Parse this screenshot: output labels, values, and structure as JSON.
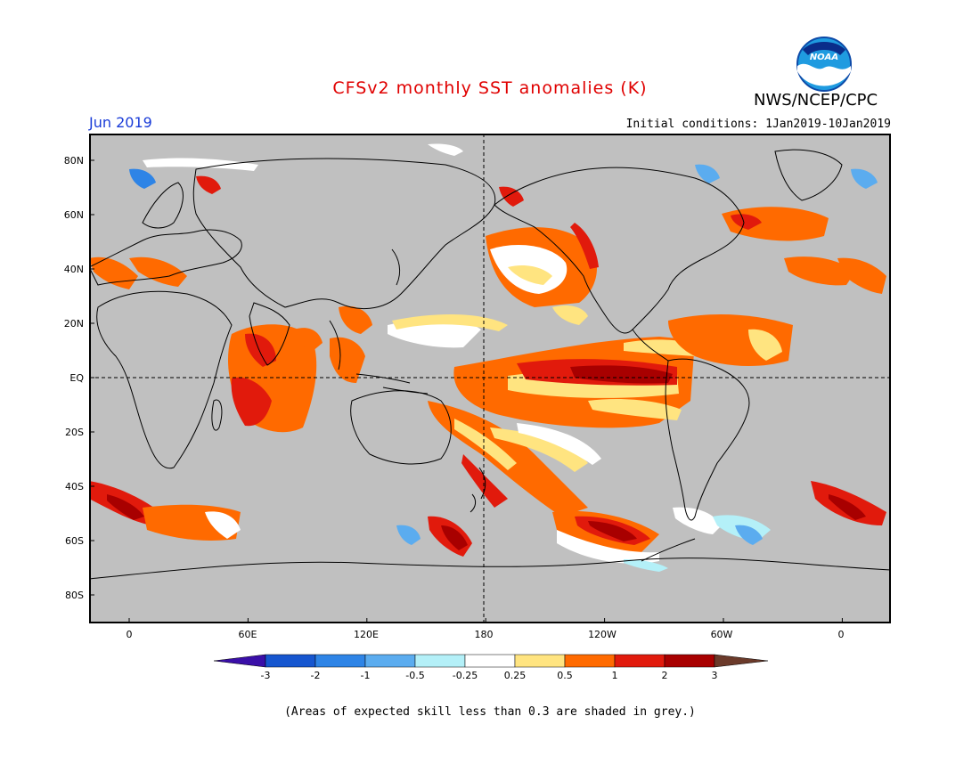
{
  "header": {
    "title": "CFSv2 monthly SST anomalies (K)",
    "agency": "NWS/NCEP/CPC",
    "logo_text": "NOAA",
    "month": "Jun 2019",
    "initial_conditions": "Initial conditions: 1Jan2019-10Jan2019"
  },
  "map": {
    "lat_labels": [
      "80N",
      "60N",
      "40N",
      "20N",
      "EQ",
      "20S",
      "40S",
      "60S",
      "80S"
    ],
    "lon_labels": [
      "0",
      "60E",
      "120E",
      "180",
      "120W",
      "60W",
      "0"
    ],
    "land_color": "#c0c0c0"
  },
  "colorbar": {
    "labels": [
      "-3",
      "-2",
      "-1",
      "-0.5",
      "-0.25",
      "0.25",
      "0.5",
      "1",
      "2",
      "3"
    ],
    "colors": [
      "#3a0fa8",
      "#1656cf",
      "#2e84e6",
      "#5bacef",
      "#b4f0f8",
      "#ffffff",
      "#ffe480",
      "#ff6a00",
      "#e11a0c",
      "#a80000",
      "#6b3a2a"
    ]
  },
  "footnote": "(Areas of expected skill less than 0.3 are shaded in grey.)"
}
